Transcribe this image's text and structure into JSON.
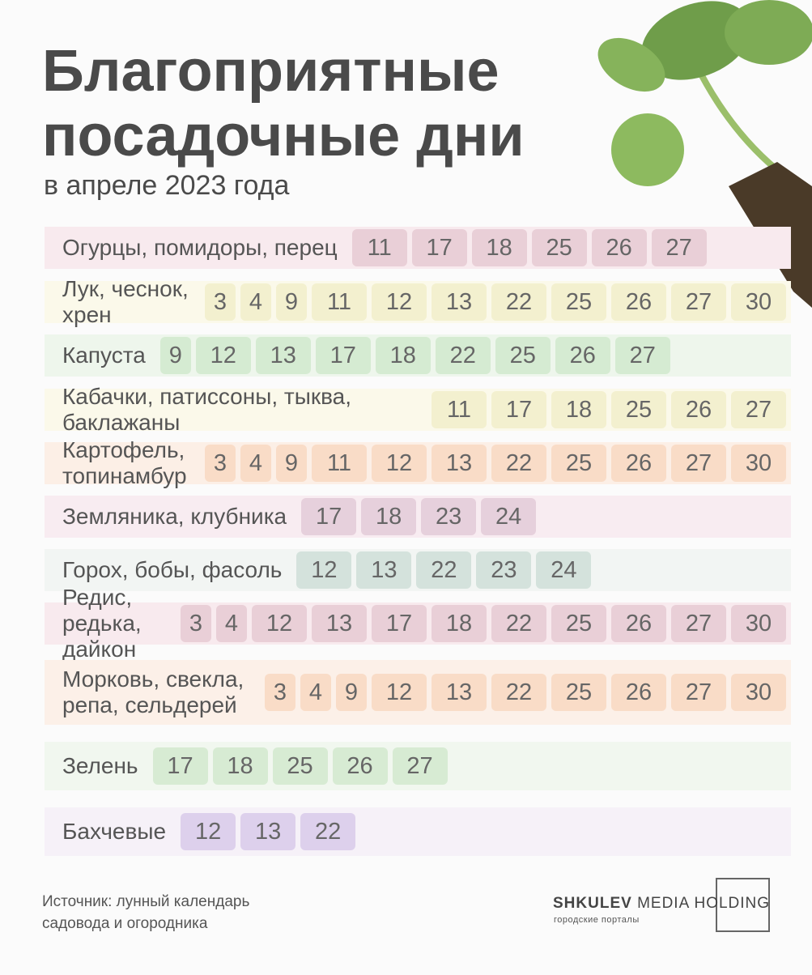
{
  "header": {
    "title": "Благоприятные посадочные дни",
    "subtitle": "в апреле 2023 года"
  },
  "rows": [
    {
      "label": "Огурцы, помидоры, перец",
      "days": [
        11,
        17,
        18,
        25,
        26,
        27
      ]
    },
    {
      "label": "Лук, чеснок, хрен",
      "days": [
        3,
        4,
        9,
        11,
        12,
        13,
        22,
        25,
        26,
        27,
        30
      ]
    },
    {
      "label": "Капуста",
      "days": [
        9,
        12,
        13,
        17,
        18,
        22,
        25,
        26,
        27
      ]
    },
    {
      "label": "Кабачки, патиссоны, тыква, баклажаны",
      "days": [
        11,
        17,
        18,
        25,
        26,
        27
      ]
    },
    {
      "label": "Картофель, топинамбур",
      "days": [
        3,
        4,
        9,
        11,
        12,
        13,
        22,
        25,
        26,
        27,
        30
      ]
    },
    {
      "label": "Земляника, клубника",
      "days": [
        17,
        18,
        23,
        24
      ]
    },
    {
      "label": "Горох, бобы, фасоль",
      "days": [
        12,
        13,
        22,
        23,
        24
      ]
    },
    {
      "label": "Редис, редька, дайкон",
      "days": [
        3,
        4,
        12,
        13,
        17,
        18,
        22,
        25,
        26,
        27,
        30
      ]
    },
    {
      "label": "Морковь, свекла, репа, сельдерей",
      "days": [
        3,
        4,
        9,
        12,
        13,
        22,
        25,
        26,
        27,
        30
      ]
    },
    {
      "label": "Зелень",
      "days": [
        17,
        18,
        25,
        26,
        27
      ]
    },
    {
      "label": "Бахчевые",
      "days": [
        12,
        13,
        22
      ]
    }
  ],
  "footer": {
    "source": "Источник: лунный календарь садовода и огородника"
  },
  "logo": {
    "brand": "SHKULEV",
    "name": "MEDIA HOLDING",
    "tagline": "городские порталы"
  }
}
